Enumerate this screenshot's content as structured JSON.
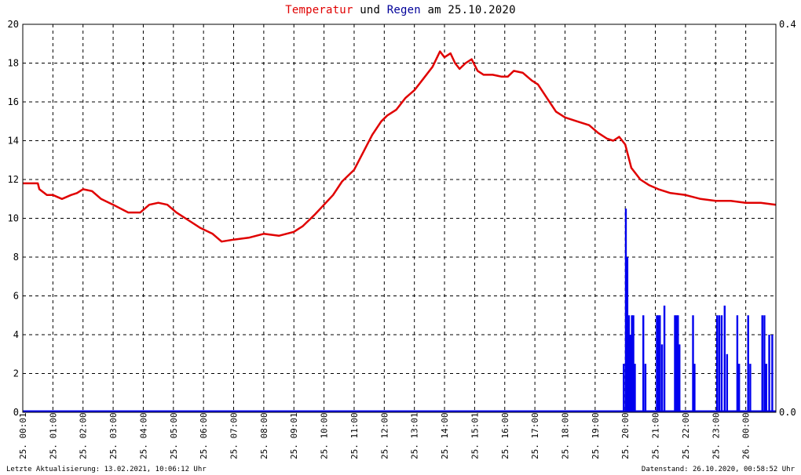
{
  "title": {
    "word_temp": "Temperatur",
    "word_and": " und ",
    "word_rain": "Regen",
    "word_date": " am 25.10.2020"
  },
  "footer": {
    "left": "Letzte Aktualisierung: 13.02.2021, 10:06:12 Uhr",
    "right": "Datenstand: 26.10.2020, 00:58:52 Uhr"
  },
  "colors": {
    "temperature": "#e00000",
    "rain": "#0000ee",
    "grid": "#000000"
  },
  "chart_data": {
    "type": "line",
    "title": "Temperatur und Regen am 25.10.2020",
    "grid": true,
    "x_tick_labels": [
      "25. 00:01",
      "25. 01:00",
      "25. 02:00",
      "25. 03:00",
      "25. 04:00",
      "25. 05:00",
      "25. 06:00",
      "25. 07:00",
      "25. 08:00",
      "25. 09:01",
      "25. 10:00",
      "25. 11:00",
      "25. 12:00",
      "25. 13:01",
      "25. 14:00",
      "25. 15:01",
      "25. 16:00",
      "25. 17:00",
      "25. 18:00",
      "25. 19:00",
      "25. 20:00",
      "25. 21:00",
      "25. 22:00",
      "25. 23:00",
      "26. 00:00"
    ],
    "x_range_hours": [
      0,
      25
    ],
    "y_left": {
      "ylim": [
        0,
        20
      ],
      "ticks": [
        "0",
        "2",
        "4",
        "6",
        "8",
        "10",
        "12",
        "14",
        "16",
        "18",
        "20"
      ]
    },
    "y_right": {
      "ylim": [
        0,
        0.4
      ],
      "ticks": [
        "0.0",
        "0.4"
      ]
    },
    "series": [
      {
        "name": "Temperatur",
        "axis": "left",
        "x_hours": [
          0,
          0.5,
          0.55,
          0.8,
          1.0,
          1.3,
          1.6,
          1.8,
          2.0,
          2.3,
          2.6,
          3.0,
          3.5,
          3.9,
          4.2,
          4.5,
          4.8,
          5.1,
          5.5,
          5.9,
          6.3,
          6.6,
          7.0,
          7.5,
          8.0,
          8.5,
          9.0,
          9.3,
          9.7,
          10.0,
          10.3,
          10.6,
          11.0,
          11.3,
          11.6,
          11.9,
          12.1,
          12.4,
          12.7,
          13.0,
          13.3,
          13.6,
          13.85,
          14.0,
          14.2,
          14.35,
          14.5,
          14.7,
          14.9,
          15.1,
          15.3,
          15.6,
          15.9,
          16.1,
          16.3,
          16.6,
          16.9,
          17.1,
          17.4,
          17.7,
          18.0,
          18.4,
          18.8,
          19.1,
          19.4,
          19.6,
          19.8,
          20.0,
          20.2,
          20.5,
          20.8,
          21.1,
          21.5,
          22.0,
          22.5,
          23.0,
          23.5,
          24.0,
          24.5,
          25.0
        ],
        "y": [
          11.8,
          11.8,
          11.5,
          11.2,
          11.2,
          11.0,
          11.2,
          11.3,
          11.5,
          11.4,
          11.0,
          10.7,
          10.3,
          10.3,
          10.7,
          10.8,
          10.7,
          10.3,
          9.9,
          9.5,
          9.2,
          8.8,
          8.9,
          9.0,
          9.2,
          9.1,
          9.3,
          9.6,
          10.2,
          10.7,
          11.2,
          11.9,
          12.5,
          13.4,
          14.3,
          15.0,
          15.3,
          15.6,
          16.2,
          16.6,
          17.2,
          17.8,
          18.6,
          18.3,
          18.5,
          18.0,
          17.7,
          18.0,
          18.2,
          17.6,
          17.4,
          17.4,
          17.3,
          17.3,
          17.6,
          17.5,
          17.1,
          16.9,
          16.2,
          15.5,
          15.2,
          15.0,
          14.8,
          14.4,
          14.1,
          14.0,
          14.2,
          13.8,
          12.6,
          12.0,
          11.7,
          11.5,
          11.3,
          11.2,
          11.0,
          10.9,
          10.9,
          10.8,
          10.8,
          10.7
        ]
      },
      {
        "name": "Regen",
        "axis": "right",
        "bars": [
          {
            "x": 19.95,
            "v": 0.05
          },
          {
            "x": 20.02,
            "v": 0.21
          },
          {
            "x": 20.07,
            "v": 0.16
          },
          {
            "x": 20.12,
            "v": 0.1
          },
          {
            "x": 20.18,
            "v": 0.08
          },
          {
            "x": 20.22,
            "v": 0.1
          },
          {
            "x": 20.27,
            "v": 0.1
          },
          {
            "x": 20.32,
            "v": 0.05
          },
          {
            "x": 20.6,
            "v": 0.1
          },
          {
            "x": 20.67,
            "v": 0.05
          },
          {
            "x": 21.05,
            "v": 0.1
          },
          {
            "x": 21.1,
            "v": 0.1
          },
          {
            "x": 21.15,
            "v": 0.1
          },
          {
            "x": 21.22,
            "v": 0.07
          },
          {
            "x": 21.3,
            "v": 0.11
          },
          {
            "x": 21.65,
            "v": 0.1
          },
          {
            "x": 21.7,
            "v": 0.1
          },
          {
            "x": 21.75,
            "v": 0.1
          },
          {
            "x": 21.8,
            "v": 0.07
          },
          {
            "x": 22.25,
            "v": 0.1
          },
          {
            "x": 22.3,
            "v": 0.05
          },
          {
            "x": 23.05,
            "v": 0.1
          },
          {
            "x": 23.12,
            "v": 0.1
          },
          {
            "x": 23.2,
            "v": 0.1
          },
          {
            "x": 23.3,
            "v": 0.11
          },
          {
            "x": 23.38,
            "v": 0.06
          },
          {
            "x": 23.72,
            "v": 0.1
          },
          {
            "x": 23.78,
            "v": 0.05
          },
          {
            "x": 24.08,
            "v": 0.1
          },
          {
            "x": 24.15,
            "v": 0.05
          },
          {
            "x": 24.55,
            "v": 0.1
          },
          {
            "x": 24.62,
            "v": 0.1
          },
          {
            "x": 24.68,
            "v": 0.05
          },
          {
            "x": 24.78,
            "v": 0.08
          },
          {
            "x": 24.88,
            "v": 0.08
          }
        ]
      }
    ]
  }
}
